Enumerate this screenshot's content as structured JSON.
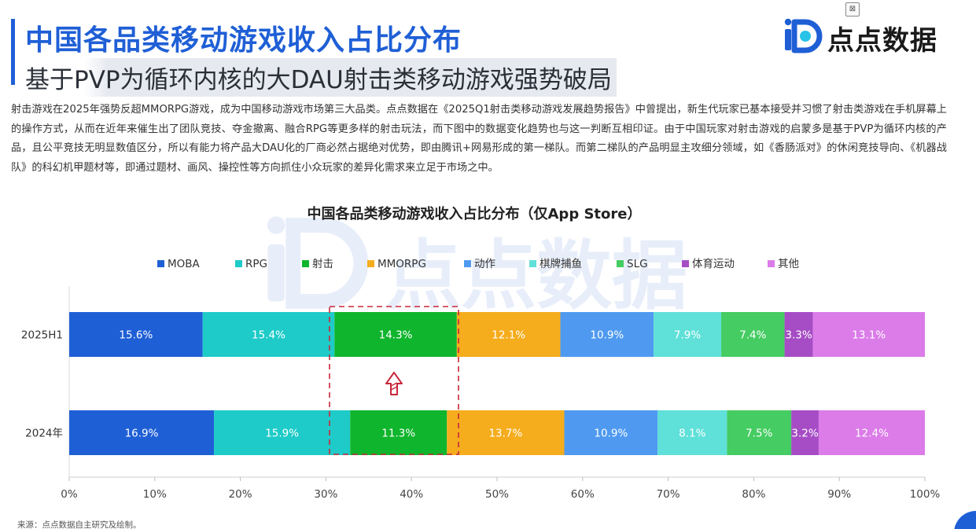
{
  "header": {
    "title": "中国各品类移动游戏收入占比分布",
    "subtitle": "基于PVP为循环内核的大DAU射击类移动游戏强势破局"
  },
  "logo": {
    "text": "点点数据",
    "icon": "diandian-logo-icon"
  },
  "body_text": "射击游戏在2025年强势反超MMORPG游戏，成为中国移动游戏市场第三大品类。点点数据在《2025Q1射击类移动游戏发展趋势报告》中曾提出，新生代玩家已基本接受并习惯了射击类游戏在手机屏幕上的操作方式，从而在近年来催生出了团队竞技、夺金撤离、融合RPG等更多样的射击玩法，而下图中的数据变化趋势也与这一判断互相印证。由于中国玩家对射击游戏的启蒙多是基于PVP为循环内核的产品，且公平竞技无明显数值区分，所以有能力将产品大DAU化的厂商必然占据绝对优势，即由腾讯+网易形成的第一梯队。而第二梯队的产品明显主攻细分领域，如《香肠派对》的休闲竞技导向、《机器战队》的科幻机甲题材等，即通过题材、画风、操控性等方向抓住小众玩家的差异化需求来立足于市场之中。",
  "source": "来源：点点数据自主研究及绘制。",
  "watermark": "点点数据",
  "chart_data": {
    "type": "bar",
    "orientation": "horizontal",
    "stacked": "100%",
    "title": "中国各品类移动游戏收入占比分布（仅App Store）",
    "categories": [
      "2025H1",
      "2024年"
    ],
    "series": [
      {
        "name": "MOBA",
        "color": "#1f5fd6",
        "values": [
          15.6,
          16.9
        ]
      },
      {
        "name": "RPG",
        "color": "#1ecbc8",
        "values": [
          15.4,
          15.9
        ]
      },
      {
        "name": "射击",
        "color": "#0fb52c",
        "values": [
          14.3,
          11.3
        ]
      },
      {
        "name": "MMORPG",
        "color": "#f5ad1e",
        "values": [
          12.1,
          13.7
        ]
      },
      {
        "name": "动作",
        "color": "#4f9af0",
        "values": [
          10.9,
          10.9
        ]
      },
      {
        "name": "棋牌捕鱼",
        "color": "#5fe0d8",
        "values": [
          7.9,
          8.1
        ]
      },
      {
        "name": "SLG",
        "color": "#45cc62",
        "values": [
          7.4,
          7.5
        ]
      },
      {
        "name": "体育运动",
        "color": "#a64dc5",
        "values": [
          3.3,
          3.2
        ]
      },
      {
        "name": "其他",
        "color": "#db7ce8",
        "values": [
          13.1,
          12.4
        ]
      }
    ],
    "data_labels": [
      [
        "15.6%",
        "15.4%",
        "14.3%",
        "12.1%",
        "10.9%",
        "7.9%",
        "7.4%",
        "3.3%",
        "13.1%"
      ],
      [
        "16.9%",
        "15.9%",
        "11.3%",
        "13.7%",
        "10.9%",
        "8.1%",
        "7.5%",
        "3.2%",
        "12.4%"
      ]
    ],
    "xlim": [
      0,
      100
    ],
    "xticks": [
      "0%",
      "10%",
      "20%",
      "30%",
      "40%",
      "50%",
      "60%",
      "70%",
      "80%",
      "90%",
      "100%"
    ],
    "legend": "top",
    "annotation": {
      "type": "dashed-highlight",
      "target_series": "射击",
      "arrow": "up",
      "color": "#c8283a"
    }
  }
}
